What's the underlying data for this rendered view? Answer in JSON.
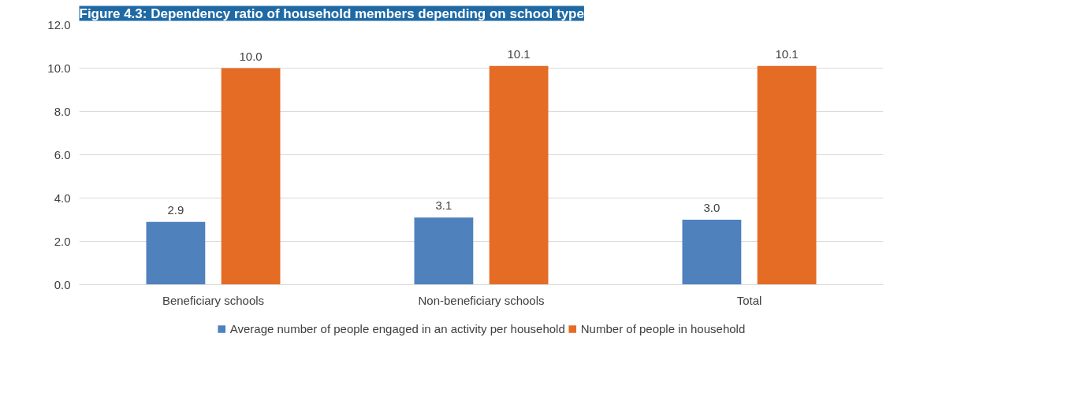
{
  "chart_data": {
    "type": "bar",
    "title": "Figure 4.3: Dependency ratio of household members depending on school type",
    "categories": [
      "Beneficiary schools",
      "Non-beneficiary schools",
      "Total"
    ],
    "series": [
      {
        "name": "Average number of people engaged in an activity per household",
        "color": "#4f81bd",
        "values": [
          2.9,
          3.1,
          3.0
        ],
        "value_labels": [
          "2.9",
          "3.1",
          "3.0"
        ]
      },
      {
        "name": "Number of people in household",
        "color": "#e46c25",
        "values": [
          10.0,
          10.1,
          10.1
        ],
        "value_labels": [
          "10.0",
          "10.1",
          "10.1"
        ]
      }
    ],
    "ylim": [
      0,
      12
    ],
    "yticks": [
      {
        "value": 0,
        "label": "0.0"
      },
      {
        "value": 2,
        "label": "2.0"
      },
      {
        "value": 4,
        "label": "4.0"
      },
      {
        "value": 6,
        "label": "6.0"
      },
      {
        "value": 8,
        "label": "8.0"
      },
      {
        "value": 10,
        "label": "10.0"
      },
      {
        "value": 12,
        "label": "12.0"
      }
    ],
    "grid": "y",
    "legend": "bottom"
  }
}
